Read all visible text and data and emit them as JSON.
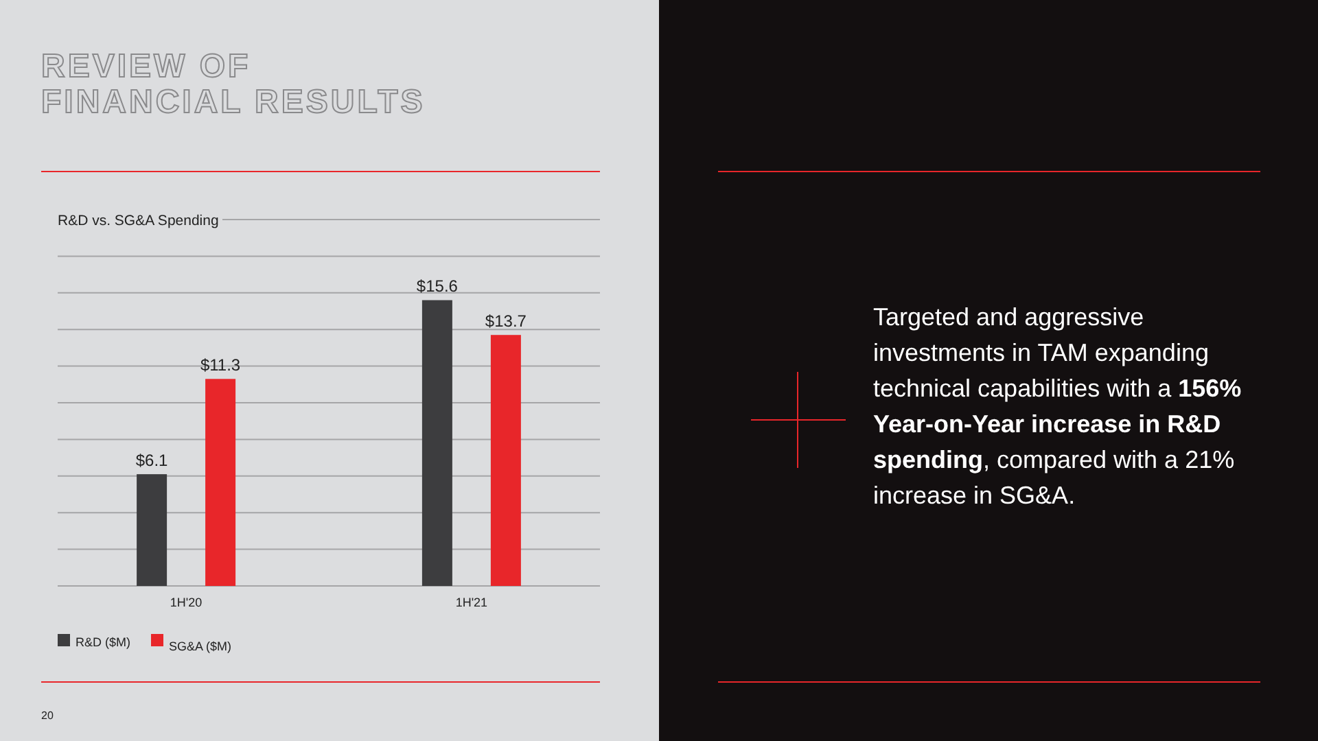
{
  "chart_data": {
    "type": "bar",
    "title": "REVIEW OF\nFINANCIAL RESULTS",
    "subtitle": "R&D vs. SG&A Spending",
    "categories": [
      "1H'20",
      "1H'21"
    ],
    "series": [
      {
        "name": "R&D ($M)",
        "color": "#3d3d3f",
        "values": [
          6.1,
          15.6
        ],
        "value_labels": [
          "$6.1",
          "$15.6"
        ]
      },
      {
        "name": "SG&A ($M)",
        "color": "#e8262a",
        "values": [
          11.3,
          13.7
        ],
        "value_labels": [
          "$11.3",
          "$13.7"
        ]
      }
    ],
    "ylim": [
      0,
      20
    ],
    "yticks": [
      {
        "value": 0,
        "label": null
      },
      {
        "value": 2,
        "label": null
      },
      {
        "value": 4,
        "label": null
      },
      {
        "value": 6,
        "label": null
      },
      {
        "value": 8,
        "label": null
      },
      {
        "value": 10,
        "label": null
      },
      {
        "value": 12,
        "label": null
      },
      {
        "value": 14,
        "label": null
      },
      {
        "value": 16,
        "label": null
      },
      {
        "value": 18,
        "label": null
      },
      {
        "value": 20,
        "label": null
      }
    ],
    "grid": "y",
    "legend": "bottom",
    "tick_labels": "x",
    "annotations": [
      "Targeted and aggressive investments in TAM expanding technical capabilities with a ",
      "156% Year-on-Year increase in R&D spending",
      ", compared with a 21% increase in SG&A.",
      "20"
    ]
  }
}
